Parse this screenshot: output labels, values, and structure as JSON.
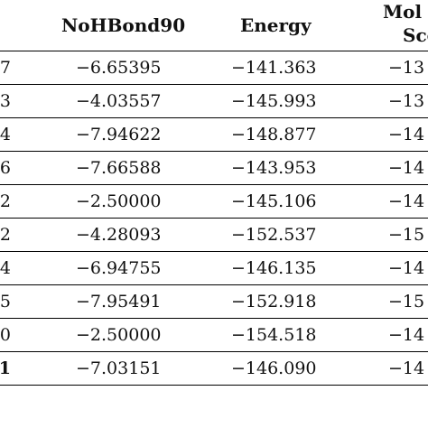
{
  "table": {
    "headers": {
      "nohbond": "NoHBond90",
      "energy": "Energy",
      "mol_line1": "Mol",
      "mol_line2": "Sco"
    },
    "rows": [
      {
        "id": "7",
        "id_bold": false,
        "nohbond": "−6.65395",
        "energy": "−141.363",
        "mol": "−13"
      },
      {
        "id": "3",
        "id_bold": false,
        "nohbond": "−4.03557",
        "energy": "−145.993",
        "mol": "−13"
      },
      {
        "id": "4",
        "id_bold": false,
        "nohbond": "−7.94622",
        "energy": "−148.877",
        "mol": "−14"
      },
      {
        "id": "6",
        "id_bold": false,
        "nohbond": "−7.66588",
        "energy": "−143.953",
        "mol": "−14"
      },
      {
        "id": "2",
        "id_bold": false,
        "nohbond": "−2.50000",
        "energy": "−145.106",
        "mol": "−14"
      },
      {
        "id": "2",
        "id_bold": false,
        "nohbond": "−4.28093",
        "energy": "−152.537",
        "mol": "−15"
      },
      {
        "id": "4",
        "id_bold": false,
        "nohbond": "−6.94755",
        "energy": "−146.135",
        "mol": "−14"
      },
      {
        "id": "5",
        "id_bold": false,
        "nohbond": "−7.95491",
        "energy": "−152.918",
        "mol": "−15"
      },
      {
        "id": "0",
        "id_bold": false,
        "nohbond": "−2.50000",
        "energy": "−154.518",
        "mol": "−14"
      },
      {
        "id": "1",
        "id_bold": true,
        "nohbond": "−7.03151",
        "energy": "−146.090",
        "mol": "−14"
      }
    ]
  }
}
